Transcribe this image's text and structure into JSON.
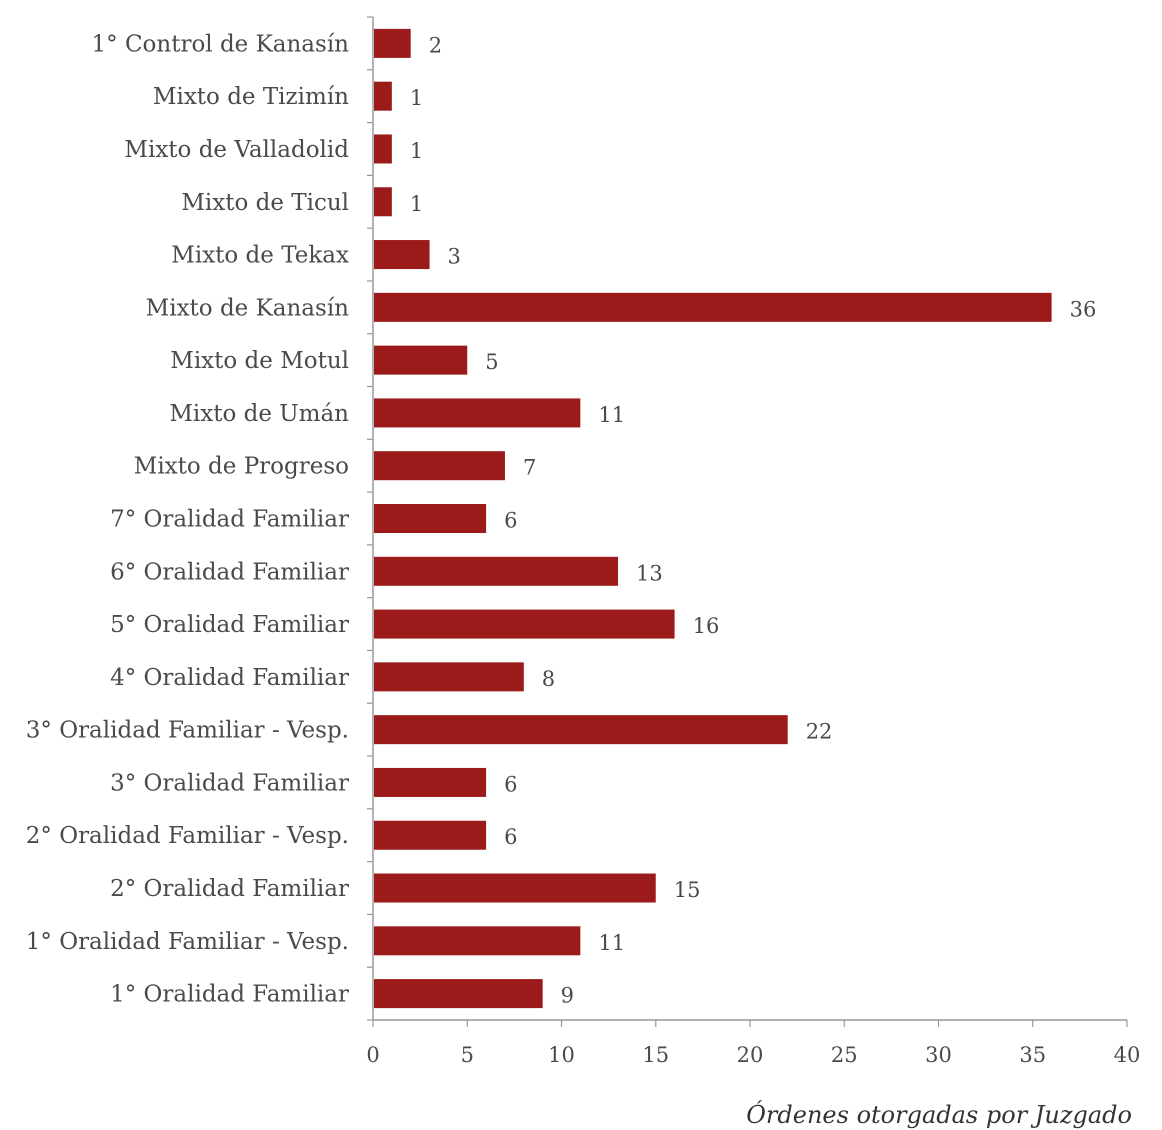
{
  "caption": "Órdenes otorgadas por Juzgado",
  "chart_data": {
    "type": "bar",
    "orientation": "horizontal",
    "categories": [
      "1° Control de Kanasín",
      "Mixto de Tizimín",
      "Mixto de Valladolid",
      "Mixto de Ticul",
      "Mixto de Tekax",
      "Mixto de Kanasín",
      "Mixto de Motul",
      "Mixto de Umán",
      "Mixto de Progreso",
      "7° Oralidad Familiar",
      "6° Oralidad Familiar",
      "5° Oralidad Familiar",
      "4° Oralidad Familiar",
      "3° Oralidad Familiar - Vesp.",
      "3° Oralidad Familiar",
      "2° Oralidad Familiar - Vesp.",
      "2° Oralidad Familiar",
      "1° Oralidad Familiar - Vesp.",
      "1° Oralidad Familiar"
    ],
    "values": [
      2,
      1,
      1,
      1,
      3,
      36,
      5,
      11,
      7,
      6,
      13,
      16,
      8,
      22,
      6,
      6,
      15,
      11,
      9
    ],
    "xlim": [
      0,
      40
    ],
    "xticks": [
      0,
      5,
      10,
      15,
      20,
      25,
      30,
      35,
      40
    ],
    "grid": false,
    "legend": "none",
    "bar_color": "#9b1b1b",
    "axis_color": "#999999"
  }
}
